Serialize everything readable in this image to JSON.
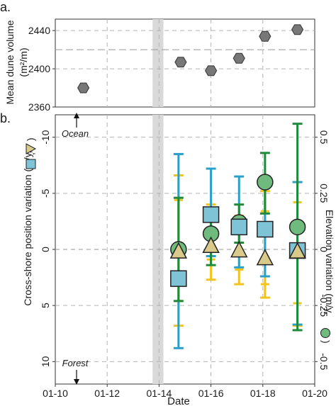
{
  "chart_data": [
    {
      "panel": "a.",
      "type": "scatter",
      "ylabel": "Mean dune volume",
      "ylabel_units": "(m²/m)",
      "ylim": [
        2360,
        2452
      ],
      "yticks": [
        2360,
        2400,
        2440
      ],
      "yticks_labels": [
        "2360",
        "2400",
        "2440"
      ],
      "xlim": [
        "2010-01",
        "2020-01"
      ],
      "grid": "dashed",
      "reference_line_y": 2420,
      "storm_band": [
        "2013-10",
        "2014-03"
      ],
      "marker": "hexagon",
      "marker_color": "#777777",
      "points": [
        {
          "x": "2011-02",
          "y": 2380
        },
        {
          "x": "2014-11",
          "y": 2407
        },
        {
          "x": "2016-01",
          "y": 2398
        },
        {
          "x": "2017-02",
          "y": 2411
        },
        {
          "x": "2018-02",
          "y": 2434
        },
        {
          "x": "2019-05",
          "y": 2441
        }
      ]
    },
    {
      "panel": "b.",
      "type": "scatter",
      "xlabel": "Date",
      "x_tick_labels": [
        "01-10",
        "01-12",
        "01-14",
        "01-16",
        "01-18",
        "01-20"
      ],
      "x_ticks": [
        "2010-01",
        "2012-01",
        "2014-01",
        "2016-01",
        "2018-01",
        "2020-01"
      ],
      "ylabel_left": "Cross-shore position variation (m/y,",
      "ylabel_right": "Elevation variation (m/y,",
      "ylim_left": [
        12,
        -12
      ],
      "yticks_left": [
        10,
        5,
        0,
        -5,
        -10
      ],
      "yticks_left_labels": [
        "10",
        "5",
        "0",
        "-5",
        "-10"
      ],
      "ylim_right": [
        -0.6,
        0.6
      ],
      "yticks_right": [
        0.5,
        0.25,
        0,
        -0.25,
        -0.5
      ],
      "yticks_right_labels": [
        "0.5",
        "0.25",
        "0",
        "-0.25",
        "-0.5"
      ],
      "annotation_top": "Ocean",
      "annotation_bottom": "Forest",
      "grid": "dashed",
      "storm_band": [
        "2013-10",
        "2014-03"
      ],
      "series": [
        {
          "marker": "triangle",
          "color": "#f2c31d",
          "marker_fill": "#d9c98a",
          "axis": "left",
          "points": [
            {
              "x": "2014-10",
              "y": 0.2,
              "err_low": -6.6,
              "err_high": 6.8,
              "inner": [
                -4.4,
                4.6
              ]
            },
            {
              "x": "2016-01",
              "y": -0.3,
              "err_low": -4.0,
              "err_high": 2.7,
              "inner": [
                -2.5,
                0.9
              ]
            },
            {
              "x": "2017-02",
              "y": 0.1,
              "err_low": -3.0,
              "err_high": 3.1,
              "inner": [
                -1.6,
                1.8
              ]
            },
            {
              "x": "2018-02",
              "y": 0.8,
              "err_low": -5.2,
              "err_high": 4.3,
              "inner": [
                -3.4,
                3.1
              ]
            },
            {
              "x": "2019-05",
              "y": 0.2,
              "err_low": -6.0,
              "err_high": 6.8,
              "inner": [
                -4.2,
                4.8
              ]
            }
          ]
        },
        {
          "marker": "square",
          "color": "#2a9fc9",
          "marker_fill": "#7fc3d6",
          "axis": "left",
          "points": [
            {
              "x": "2014-10",
              "y": 2.6,
              "err_low": -8.5,
              "err_high": 8.8
            },
            {
              "x": "2016-01",
              "y": -3.1,
              "err_low": -7.2,
              "err_high": 0.6
            },
            {
              "x": "2017-02",
              "y": -2.0,
              "err_low": -6.5,
              "err_high": 1.6
            },
            {
              "x": "2018-02",
              "y": -1.8,
              "err_low": -5.5,
              "err_high": 2.4
            },
            {
              "x": "2019-05",
              "y": 0.1,
              "err_low": -6.0,
              "err_high": 6.7
            }
          ]
        },
        {
          "marker": "circle",
          "color": "#1f8a3a",
          "marker_fill": "#6fbb7d",
          "axis": "right",
          "points": [
            {
              "x": "2014-10",
              "y": 0.0,
              "err_low": -0.23,
              "err_high": 0.23
            },
            {
              "x": "2016-01",
              "y": 0.07,
              "err_low": -0.07,
              "err_high": 0.18
            },
            {
              "x": "2017-02",
              "y": 0.12,
              "err_low": 0.03,
              "err_high": 0.2
            },
            {
              "x": "2018-02",
              "y": 0.3,
              "err_low": 0.16,
              "err_high": 0.43
            },
            {
              "x": "2019-05",
              "y": 0.1,
              "err_low": -0.36,
              "err_high": 0.56
            }
          ]
        }
      ]
    }
  ]
}
